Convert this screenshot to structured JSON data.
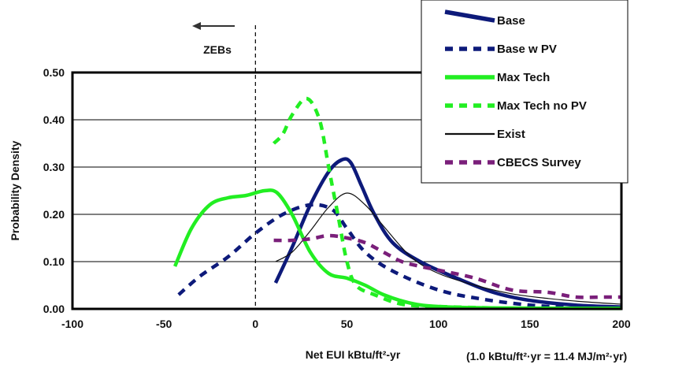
{
  "chart_data": {
    "type": "line",
    "title": "",
    "xlabel": "Net EUI kBtu/ft²-yr",
    "ylabel": "Probability Density",
    "unit_note": "(1.0 kBtu/ft²·yr = 11.4 MJ/m²·yr)",
    "annotation": "ZEBs",
    "reference_line_x": 0,
    "xlim": [
      -100,
      200
    ],
    "ylim": [
      0,
      0.5
    ],
    "x_ticks": [
      -100,
      -50,
      0,
      50,
      100,
      150,
      200
    ],
    "x_tick_labels": [
      "-100",
      "-50",
      "0",
      "50",
      "100",
      "150",
      "200"
    ],
    "y_ticks": [
      0,
      0.1,
      0.2,
      0.3,
      0.4,
      0.5
    ],
    "y_tick_labels": [
      "0.00",
      "0.10",
      "0.20",
      "0.30",
      "0.40",
      "0.50"
    ],
    "grid": "horizontal",
    "legend_position": "top-right",
    "series": [
      {
        "name": "Base",
        "color": "#0d1a7a",
        "style": "solid-thick",
        "points": [
          [
            11,
            0.055
          ],
          [
            20,
            0.13
          ],
          [
            30,
            0.22
          ],
          [
            40,
            0.29
          ],
          [
            47,
            0.315
          ],
          [
            52,
            0.31
          ],
          [
            58,
            0.26
          ],
          [
            65,
            0.2
          ],
          [
            75,
            0.14
          ],
          [
            90,
            0.1
          ],
          [
            110,
            0.065
          ],
          [
            130,
            0.035
          ],
          [
            150,
            0.018
          ],
          [
            175,
            0.008
          ],
          [
            200,
            0.004
          ]
        ]
      },
      {
        "name": "Base w PV",
        "color": "#0d1a7a",
        "style": "dashed-thick",
        "points": [
          [
            -42,
            0.03
          ],
          [
            -30,
            0.07
          ],
          [
            -15,
            0.11
          ],
          [
            0,
            0.16
          ],
          [
            15,
            0.2
          ],
          [
            30,
            0.22
          ],
          [
            42,
            0.21
          ],
          [
            50,
            0.17
          ],
          [
            60,
            0.12
          ],
          [
            75,
            0.08
          ],
          [
            100,
            0.04
          ],
          [
            125,
            0.02
          ],
          [
            150,
            0.008
          ],
          [
            170,
            0.003
          ]
        ]
      },
      {
        "name": "Max Tech",
        "color": "#22ee22",
        "style": "solid-thick",
        "points": [
          [
            -44,
            0.09
          ],
          [
            -35,
            0.17
          ],
          [
            -25,
            0.22
          ],
          [
            -15,
            0.235
          ],
          [
            -5,
            0.24
          ],
          [
            5,
            0.25
          ],
          [
            12,
            0.245
          ],
          [
            20,
            0.2
          ],
          [
            30,
            0.12
          ],
          [
            40,
            0.075
          ],
          [
            50,
            0.065
          ],
          [
            60,
            0.05
          ],
          [
            70,
            0.03
          ],
          [
            85,
            0.012
          ],
          [
            100,
            0.005
          ],
          [
            130,
            0.002
          ],
          [
            200,
            0.001
          ]
        ]
      },
      {
        "name": "Max Tech no PV",
        "color": "#22ee22",
        "style": "dashed-thick",
        "points": [
          [
            10,
            0.35
          ],
          [
            15,
            0.37
          ],
          [
            20,
            0.41
          ],
          [
            28,
            0.445
          ],
          [
            35,
            0.4
          ],
          [
            40,
            0.3
          ],
          [
            45,
            0.2
          ],
          [
            50,
            0.1
          ],
          [
            55,
            0.05
          ],
          [
            65,
            0.03
          ],
          [
            80,
            0.01
          ],
          [
            100,
            0.005
          ],
          [
            130,
            0.002
          ]
        ]
      },
      {
        "name": "Exist",
        "color": "#111111",
        "style": "solid-thin",
        "points": [
          [
            11,
            0.1
          ],
          [
            20,
            0.12
          ],
          [
            30,
            0.165
          ],
          [
            40,
            0.215
          ],
          [
            50,
            0.245
          ],
          [
            60,
            0.22
          ],
          [
            70,
            0.175
          ],
          [
            85,
            0.11
          ],
          [
            100,
            0.075
          ],
          [
            120,
            0.05
          ],
          [
            140,
            0.032
          ],
          [
            160,
            0.022
          ],
          [
            180,
            0.015
          ],
          [
            200,
            0.01
          ]
        ]
      },
      {
        "name": "CBECS Survey",
        "color": "#7a1f7a",
        "style": "dashed-thick",
        "points": [
          [
            10,
            0.145
          ],
          [
            20,
            0.145
          ],
          [
            30,
            0.148
          ],
          [
            40,
            0.155
          ],
          [
            50,
            0.15
          ],
          [
            60,
            0.14
          ],
          [
            70,
            0.12
          ],
          [
            80,
            0.1
          ],
          [
            90,
            0.09
          ],
          [
            100,
            0.082
          ],
          [
            120,
            0.065
          ],
          [
            140,
            0.04
          ],
          [
            160,
            0.035
          ],
          [
            175,
            0.025
          ],
          [
            190,
            0.025
          ],
          [
            200,
            0.025
          ]
        ]
      }
    ]
  }
}
